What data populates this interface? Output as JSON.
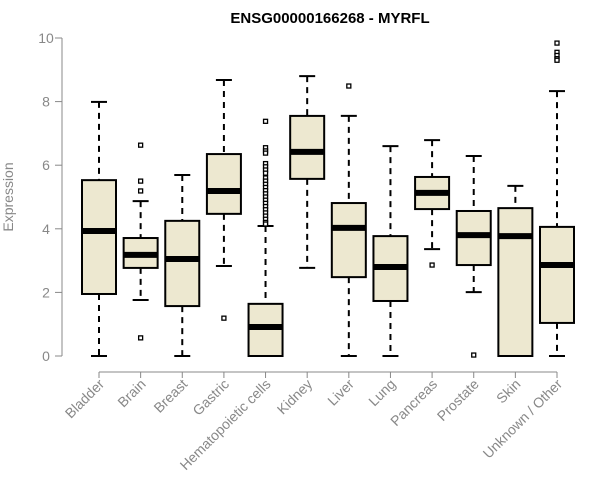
{
  "chart_data": {
    "type": "boxplot",
    "title": "ENSG00000166268 - MYRFL",
    "xlabel": "",
    "ylabel": "Expression",
    "ylim": [
      0,
      10
    ],
    "yticks": [
      0,
      2,
      4,
      6,
      8,
      10
    ],
    "grid": false,
    "box_color": "#ede8d0",
    "categories": [
      "Bladder",
      "Brain",
      "Breast",
      "Gastric",
      "Hematopoietic cells",
      "Kidney",
      "Liver",
      "Lung",
      "Pancreas",
      "Prostate",
      "Skin",
      "Unknown / Other"
    ],
    "boxes": [
      {
        "low": 0,
        "q1": 1.95,
        "median": 3.93,
        "q3": 5.53,
        "high": 7.99,
        "outliers": []
      },
      {
        "low": 1.76,
        "q1": 2.77,
        "median": 3.18,
        "q3": 3.71,
        "high": 4.87,
        "outliers": [
          6.63,
          5.5,
          5.19,
          0.57
        ]
      },
      {
        "low": 0,
        "q1": 1.57,
        "median": 3.05,
        "q3": 4.25,
        "high": 5.69,
        "outliers": []
      },
      {
        "low": 2.83,
        "q1": 4.47,
        "median": 5.19,
        "q3": 6.35,
        "high": 8.68,
        "outliers": [
          1.19
        ]
      },
      {
        "low": 0,
        "q1": 0,
        "median": 0.91,
        "q3": 1.64,
        "high": 4.09,
        "outliers": [
          7.38,
          6.55,
          6.45,
          6.38,
          6.05,
          5.95,
          5.85,
          5.75,
          5.6,
          5.5,
          5.4,
          5.3,
          5.2,
          5.1,
          5.0,
          4.9,
          4.8,
          4.7,
          4.6,
          4.5,
          4.4,
          4.3,
          4.2,
          4.15
        ]
      },
      {
        "low": 2.77,
        "q1": 5.57,
        "median": 6.42,
        "q3": 7.55,
        "high": 8.8,
        "outliers": []
      },
      {
        "low": 0,
        "q1": 2.48,
        "median": 4.03,
        "q3": 4.81,
        "high": 7.55,
        "outliers": [
          8.49
        ]
      },
      {
        "low": 0,
        "q1": 1.73,
        "median": 2.8,
        "q3": 3.77,
        "high": 6.6,
        "outliers": []
      },
      {
        "low": 3.36,
        "q1": 4.62,
        "median": 5.13,
        "q3": 5.63,
        "high": 6.79,
        "outliers": [
          2.86
        ]
      },
      {
        "low": 2.01,
        "q1": 2.86,
        "median": 3.8,
        "q3": 4.56,
        "high": 6.29,
        "outliers": [
          0.03
        ]
      },
      {
        "low": 0,
        "q1": 0,
        "median": 3.77,
        "q3": 4.65,
        "high": 5.35,
        "outliers": []
      },
      {
        "low": 0,
        "q1": 1.04,
        "median": 2.86,
        "q3": 4.06,
        "high": 8.33,
        "outliers": [
          9.84,
          9.55,
          9.45,
          9.35,
          9.3
        ]
      }
    ]
  }
}
